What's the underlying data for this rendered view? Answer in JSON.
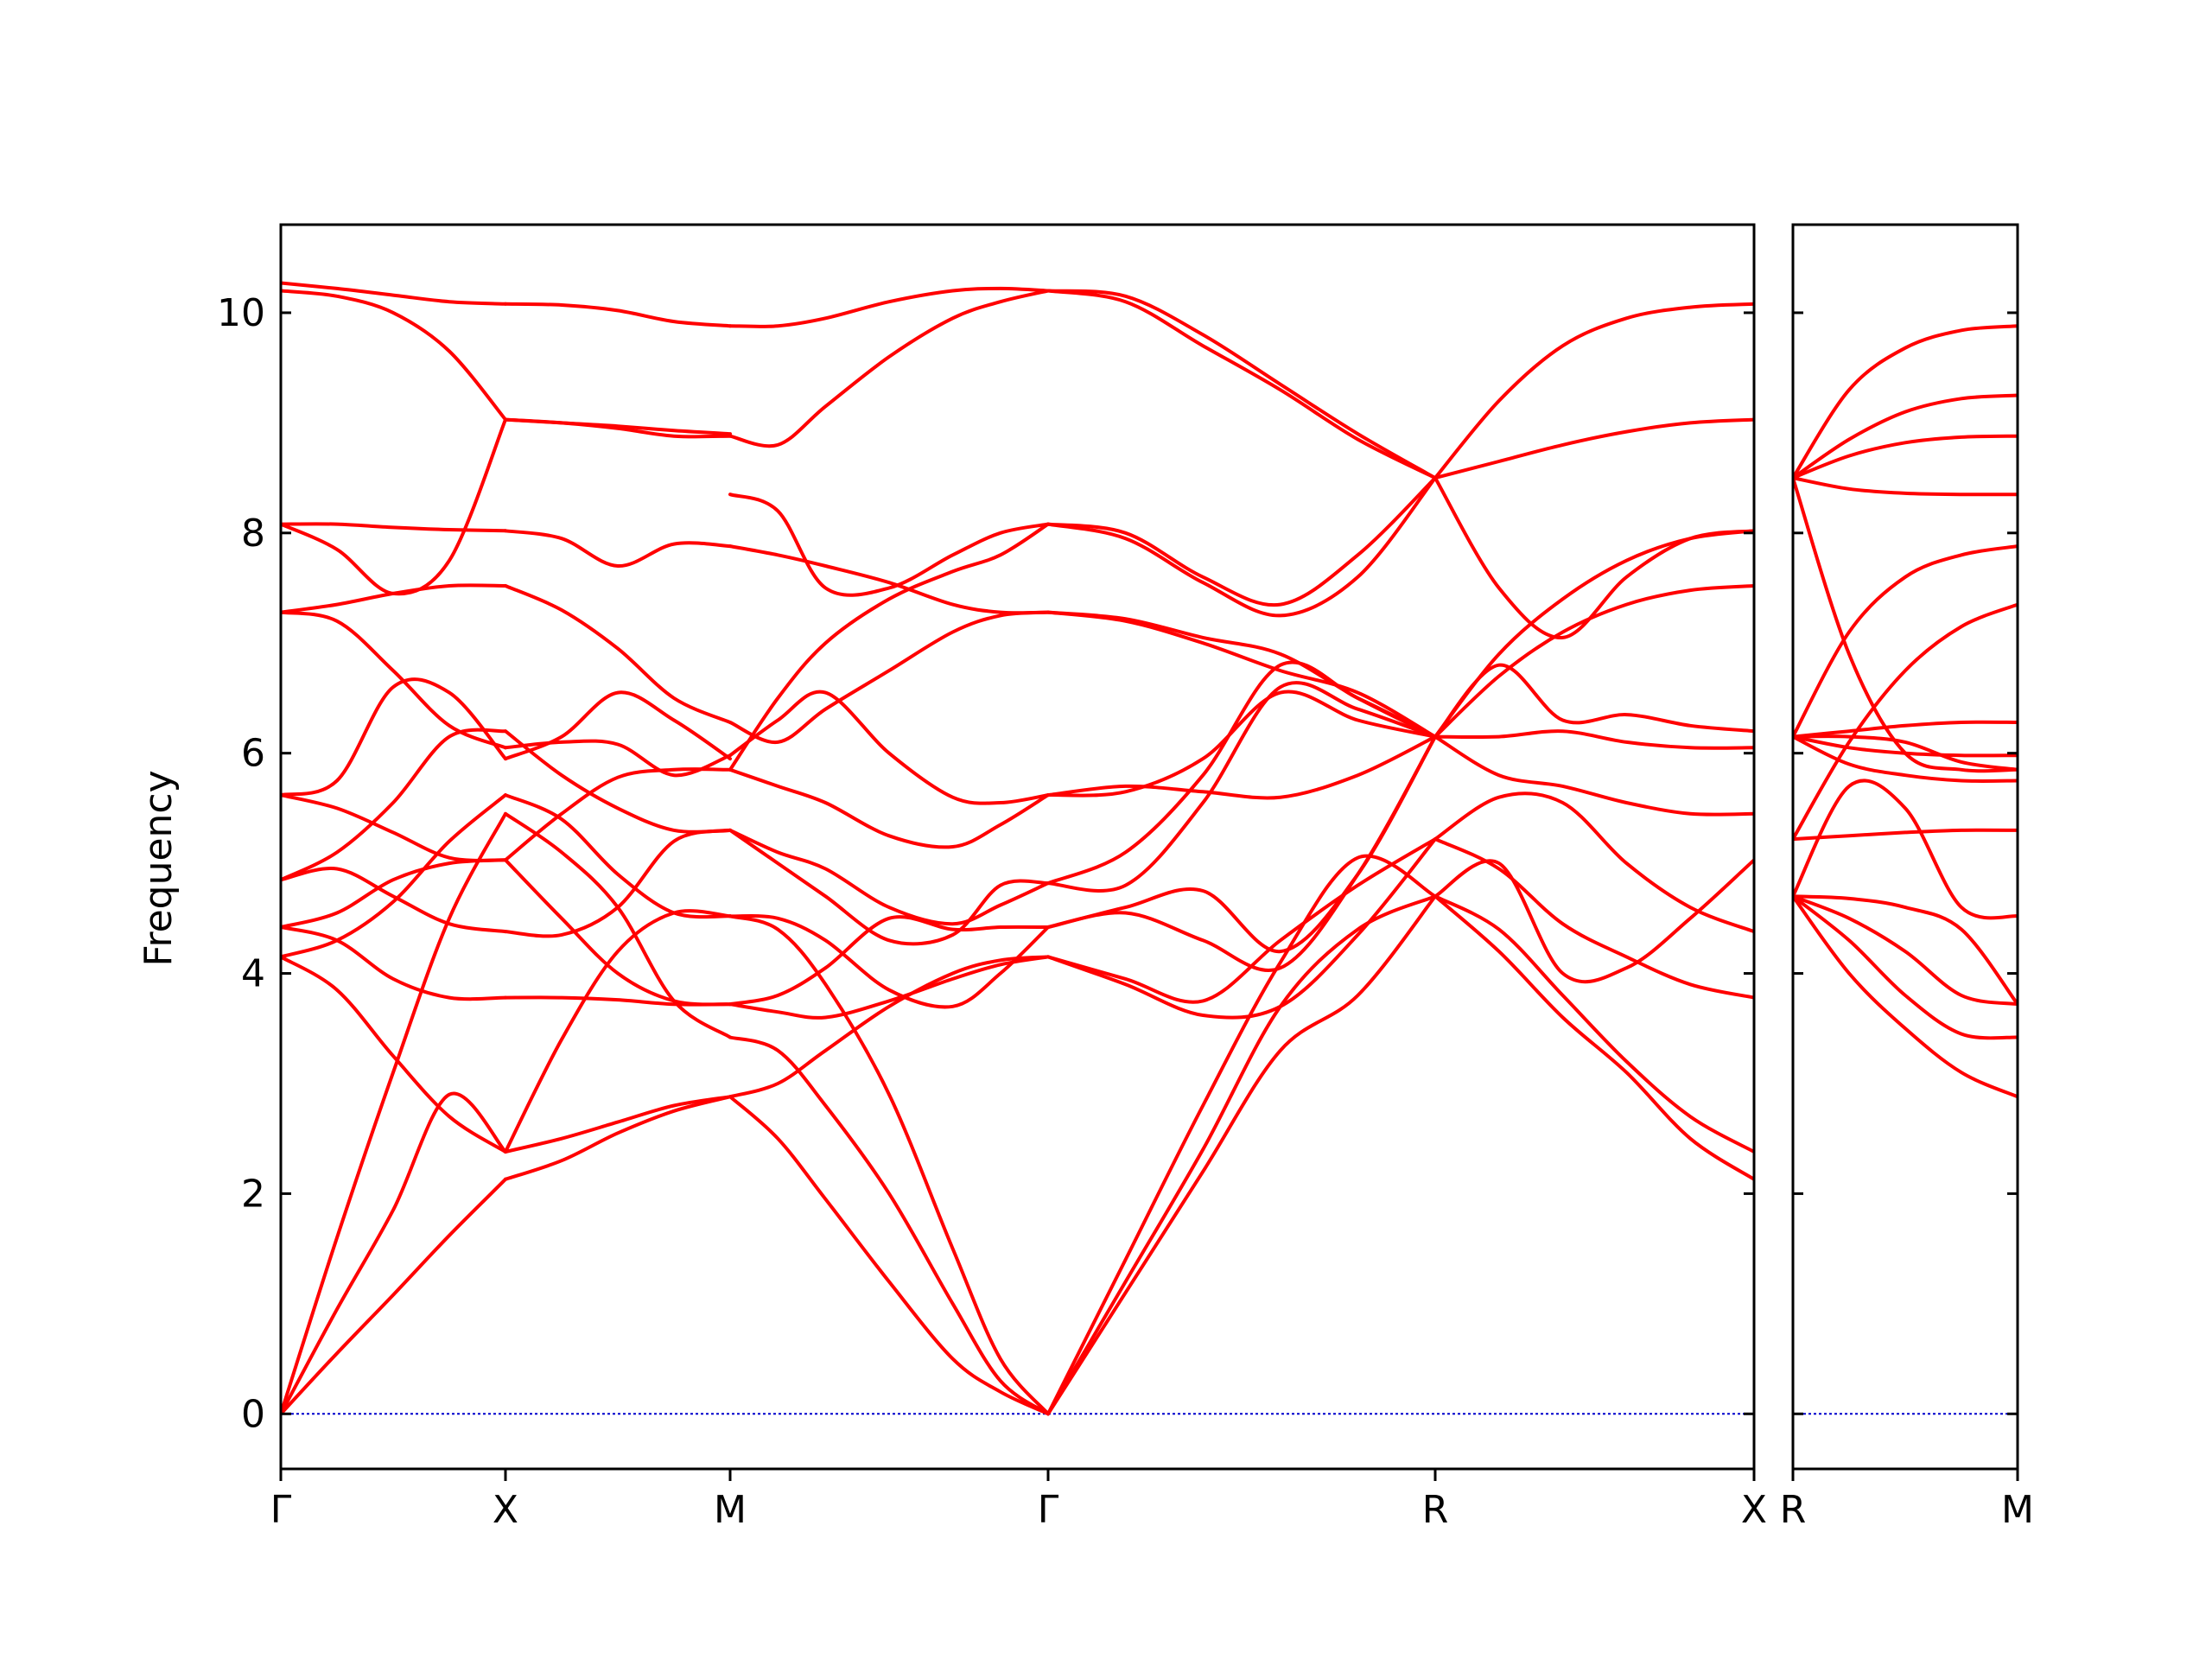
{
  "chart_data": {
    "type": "line",
    "ylabel": "Frequency",
    "xlabel": "",
    "ylim": [
      -0.5,
      10.8
    ],
    "yticks": [
      0,
      2,
      4,
      6,
      8,
      10
    ],
    "grid": false,
    "legend": "none",
    "colors": {
      "bands": "#ff0000",
      "zero_line": "#0000cc",
      "axes": "#000000"
    },
    "panels": [
      {
        "name": "main",
        "segments": [
          {
            "from": "Γ",
            "to": "X",
            "x": [
              0,
              0.25,
              0.5,
              0.75,
              1
            ],
            "bands": [
              [
                0,
                0.55,
                1.08,
                1.62,
                2.13
              ],
              [
                0,
                0.95,
                1.85,
                2.9,
                2.38
              ],
              [
                0,
                1.6,
                3.1,
                4.5,
                5.45
              ],
              [
                4.15,
                3.85,
                3.25,
                2.7,
                2.38
              ],
              [
                4.15,
                4.3,
                4.65,
                5.2,
                5.62
              ],
              [
                4.42,
                4.3,
                3.95,
                3.78,
                3.78
              ],
              [
                4.42,
                4.55,
                4.85,
                5.0,
                5.03
              ],
              [
                4.85,
                4.95,
                4.7,
                4.45,
                4.38
              ],
              [
                4.85,
                5.1,
                5.55,
                6.15,
                6.2
              ],
              [
                5.62,
                5.5,
                5.28,
                5.05,
                5.03
              ],
              [
                5.62,
                5.75,
                6.6,
                6.55,
                5.95
              ],
              [
                7.28,
                7.2,
                6.75,
                6.25,
                6.05
              ],
              [
                7.28,
                7.35,
                7.45,
                7.52,
                7.52
              ],
              [
                8.08,
                7.85,
                7.45,
                7.75,
                9.03
              ],
              [
                8.08,
                8.08,
                8.05,
                8.03,
                8.02
              ],
              [
                10.2,
                10.15,
                10.0,
                9.65,
                9.03
              ],
              [
                10.27,
                10.22,
                10.16,
                10.1,
                10.08
              ]
            ]
          },
          {
            "from": "X",
            "to": "M",
            "x": [
              0,
              0.25,
              0.5,
              0.75,
              1
            ],
            "bands": [
              [
                2.13,
                2.3,
                2.55,
                2.75,
                2.88
              ],
              [
                2.38,
                2.5,
                2.65,
                2.8,
                2.88
              ],
              [
                5.45,
                5.1,
                4.6,
                3.75,
                3.42
              ],
              [
                2.38,
                3.4,
                4.2,
                4.55,
                4.52
              ],
              [
                5.62,
                5.4,
                4.9,
                4.55,
                4.52
              ],
              [
                3.78,
                3.78,
                3.76,
                3.72,
                3.72
              ],
              [
                5.03,
                4.5,
                4.0,
                3.75,
                3.72
              ],
              [
                4.38,
                4.35,
                4.6,
                5.2,
                5.3
              ],
              [
                6.2,
                5.8,
                5.5,
                5.3,
                5.3
              ],
              [
                5.03,
                5.45,
                5.78,
                5.85,
                5.85
              ],
              [
                5.95,
                6.15,
                6.55,
                6.3,
                5.95
              ],
              [
                6.05,
                6.1,
                6.08,
                5.8,
                5.98
              ],
              [
                7.52,
                7.3,
                6.95,
                6.5,
                6.28
              ],
              [
                9.03,
                9.0,
                8.95,
                8.88,
                8.88
              ],
              [
                8.02,
                7.95,
                7.7,
                7.9,
                7.88
              ],
              [
                9.03,
                9.0,
                8.97,
                8.93,
                8.9
              ],
              [
                10.08,
                10.07,
                10.02,
                9.92,
                9.88
              ]
            ]
          },
          {
            "from": "M",
            "to": "Γ",
            "x": [
              0,
              0.15,
              0.3,
              0.5,
              0.7,
              0.85,
              1
            ],
            "bands": [
              [
                2.88,
                2.5,
                1.95,
                1.2,
                0.5,
                0.2,
                0
              ],
              [
                3.42,
                3.3,
                2.8,
                2.0,
                1.0,
                0.3,
                0
              ],
              [
                4.52,
                4.4,
                3.9,
                2.9,
                1.5,
                0.5,
                0
              ],
              [
                2.88,
                3.0,
                3.3,
                3.7,
                4.0,
                4.12,
                4.15
              ],
              [
                3.72,
                3.65,
                3.6,
                3.75,
                3.95,
                4.08,
                4.15
              ],
              [
                3.72,
                3.8,
                4.05,
                4.5,
                4.4,
                4.42,
                4.42
              ],
              [
                4.52,
                4.5,
                4.3,
                3.85,
                3.7,
                4.0,
                4.42
              ],
              [
                5.3,
                5.0,
                4.7,
                4.3,
                4.35,
                4.8,
                4.82
              ],
              [
                5.3,
                5.1,
                4.95,
                4.6,
                4.45,
                4.62,
                4.82
              ],
              [
                5.85,
                5.7,
                5.55,
                5.25,
                5.15,
                5.35,
                5.62
              ],
              [
                5.98,
                6.3,
                6.55,
                6.0,
                5.6,
                5.55,
                5.62
              ],
              [
                6.28,
                6.1,
                6.4,
                6.75,
                7.1,
                7.25,
                7.28
              ],
              [
                5.85,
                6.5,
                7.0,
                7.4,
                7.65,
                7.8,
                8.08
              ],
              [
                7.88,
                7.8,
                7.7,
                7.55,
                7.35,
                7.28,
                7.28
              ],
              [
                8.35,
                8.2,
                7.5,
                7.5,
                7.8,
                8.0,
                8.08
              ],
              [
                8.88,
                8.8,
                9.15,
                9.6,
                9.95,
                10.1,
                10.2
              ],
              [
                9.88,
                9.88,
                9.95,
                10.1,
                10.2,
                10.22,
                10.2
              ]
            ]
          },
          {
            "from": "Γ",
            "to": "R",
            "x": [
              0,
              0.2,
              0.4,
              0.6,
              0.8,
              1
            ],
            "bands": [
              [
                0,
                1.1,
                2.2,
                3.3,
                3.8,
                4.7
              ],
              [
                0,
                1.2,
                2.4,
                3.7,
                4.4,
                4.7
              ],
              [
                0,
                1.4,
                2.8,
                4.1,
                5.05,
                4.7
              ],
              [
                4.15,
                3.9,
                3.62,
                3.7,
                4.35,
                5.22
              ],
              [
                4.15,
                3.95,
                3.75,
                4.3,
                4.8,
                5.22
              ],
              [
                4.42,
                4.6,
                4.75,
                4.2,
                4.9,
                6.15
              ],
              [
                4.42,
                4.55,
                4.3,
                4.05,
                4.9,
                6.15
              ],
              [
                4.82,
                5.1,
                5.8,
                6.8,
                6.5,
                6.15
              ],
              [
                4.82,
                4.8,
                5.55,
                6.6,
                6.4,
                6.15
              ],
              [
                5.62,
                5.65,
                5.95,
                6.55,
                6.3,
                6.15
              ],
              [
                5.62,
                5.7,
                5.65,
                5.6,
                5.8,
                6.15
              ],
              [
                7.28,
                7.2,
                7.0,
                6.75,
                6.55,
                6.15
              ],
              [
                7.28,
                7.22,
                7.05,
                6.9,
                6.5,
                6.15
              ],
              [
                8.08,
                7.95,
                7.55,
                7.25,
                7.6,
                8.5
              ],
              [
                8.08,
                8.0,
                7.6,
                7.35,
                7.8,
                8.5
              ],
              [
                10.2,
                10.1,
                9.7,
                9.3,
                8.85,
                8.5
              ],
              [
                10.2,
                10.15,
                9.8,
                9.35,
                8.9,
                8.5
              ]
            ]
          },
          {
            "from": "R",
            "to": "X",
            "x": [
              0,
              0.2,
              0.4,
              0.6,
              0.8,
              1
            ],
            "bands": [
              [
                4.7,
                4.2,
                3.6,
                3.1,
                2.5,
                2.13
              ],
              [
                4.7,
                4.4,
                3.8,
                3.2,
                2.7,
                2.38
              ],
              [
                4.7,
                5.0,
                4.0,
                4.05,
                4.5,
                5.03
              ],
              [
                5.22,
                4.95,
                4.45,
                4.15,
                3.9,
                3.78
              ],
              [
                5.22,
                5.6,
                5.55,
                5.0,
                4.6,
                4.38
              ],
              [
                6.15,
                5.8,
                5.7,
                5.55,
                5.45,
                5.45
              ],
              [
                6.15,
                6.15,
                6.2,
                6.1,
                6.05,
                6.05
              ],
              [
                6.15,
                6.8,
                6.3,
                6.35,
                6.25,
                6.2
              ],
              [
                6.15,
                6.7,
                7.1,
                7.35,
                7.48,
                7.52
              ],
              [
                6.15,
                6.9,
                7.4,
                7.75,
                7.95,
                8.02
              ],
              [
                8.5,
                7.5,
                7.05,
                7.6,
                7.95,
                8.02
              ],
              [
                8.5,
                8.65,
                8.8,
                8.92,
                9.0,
                9.03
              ],
              [
                8.5,
                9.2,
                9.7,
                9.95,
                10.05,
                10.08
              ]
            ]
          }
        ]
      },
      {
        "name": "inset",
        "segments": [
          {
            "from": "R",
            "to": "M",
            "x": [
              0,
              0.25,
              0.5,
              0.75,
              1
            ],
            "bands": [
              [
                4.7,
                4.0,
                3.5,
                3.1,
                2.88
              ],
              [
                4.7,
                4.3,
                3.8,
                3.45,
                3.42
              ],
              [
                4.7,
                4.5,
                4.2,
                3.8,
                3.72
              ],
              [
                4.7,
                4.68,
                4.6,
                4.4,
                3.72
              ],
              [
                5.22,
                5.25,
                5.28,
                5.3,
                5.3
              ],
              [
                4.7,
                5.7,
                5.5,
                4.6,
                4.52
              ],
              [
                6.15,
                6.15,
                6.1,
                5.92,
                5.85
              ],
              [
                6.15,
                6.2,
                6.25,
                6.28,
                6.28
              ],
              [
                6.15,
                6.05,
                6.0,
                5.98,
                5.98
              ],
              [
                6.15,
                5.9,
                5.8,
                5.75,
                5.75
              ],
              [
                5.22,
                6.1,
                6.75,
                7.15,
                7.35
              ],
              [
                6.15,
                7.1,
                7.6,
                7.8,
                7.88
              ],
              [
                8.5,
                6.9,
                6.0,
                5.85,
                5.85
              ],
              [
                8.5,
                8.4,
                8.36,
                8.35,
                8.35
              ],
              [
                8.5,
                8.7,
                8.82,
                8.87,
                8.88
              ],
              [
                8.5,
                8.85,
                9.1,
                9.22,
                9.25
              ],
              [
                8.5,
                9.3,
                9.68,
                9.84,
                9.88
              ]
            ]
          }
        ]
      }
    ],
    "xtick_labels": {
      "main": [
        "Γ",
        "X",
        "M",
        "Γ",
        "R",
        "X"
      ],
      "inset": [
        "R",
        "M"
      ]
    }
  }
}
